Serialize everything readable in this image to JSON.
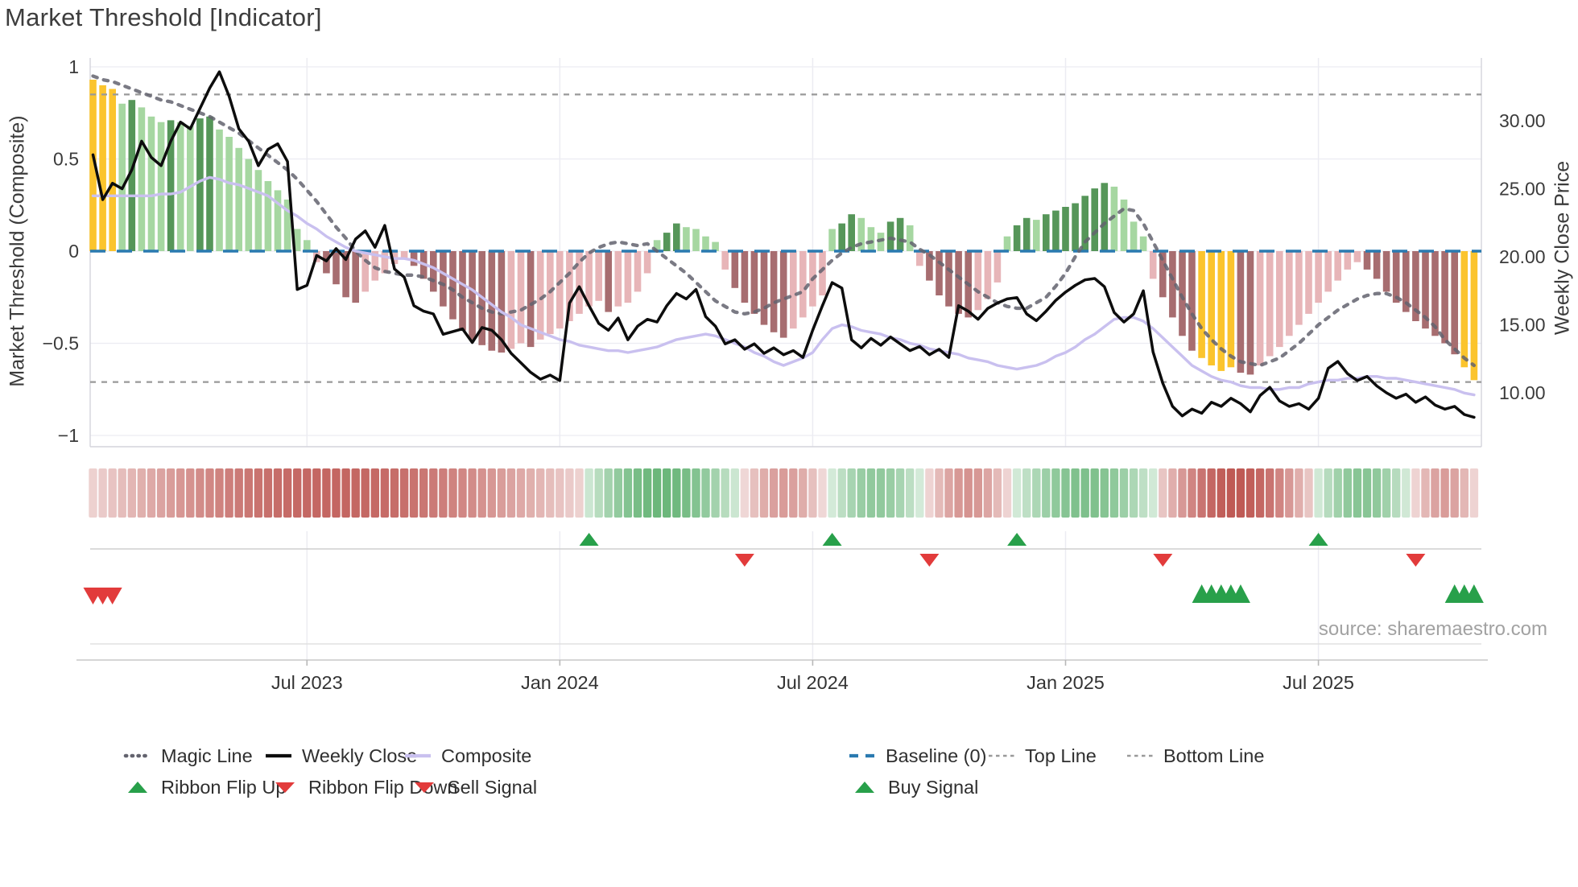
{
  "title": "Market Threshold [Indicator]",
  "source": "source: sharemaestro.com",
  "left_axis": {
    "title": "Market Threshold (Composite)",
    "ticks": [
      {
        "v": 1,
        "label": "1"
      },
      {
        "v": 0.5,
        "label": "0.5"
      },
      {
        "v": 0,
        "label": "0"
      },
      {
        "v": -0.5,
        "label": "−0.5"
      },
      {
        "v": -1,
        "label": "−1"
      }
    ]
  },
  "right_axis": {
    "title": "Weekly Close Price",
    "ticks": [
      {
        "p": 30,
        "label": "30.00"
      },
      {
        "p": 25,
        "label": "25.00"
      },
      {
        "p": 20,
        "label": "20.00"
      },
      {
        "p": 15,
        "label": "15.00"
      },
      {
        "p": 10,
        "label": "10.00"
      }
    ]
  },
  "x_axis": {
    "ticks": [
      {
        "week": 22,
        "label": "Jul 2023"
      },
      {
        "week": 48,
        "label": "Jan 2024"
      },
      {
        "week": 74,
        "label": "Jul 2024"
      },
      {
        "week": 100,
        "label": "Jan 2025"
      },
      {
        "week": 126,
        "label": "Jul 2025"
      }
    ]
  },
  "colors": {
    "bar_pos_light": "#a6d7a1",
    "bar_pos_dark": "#569659",
    "bar_neg_light": "#e7b5b8",
    "bar_neg_dark": "#a76d70",
    "bar_signal_yellow": "#fbc42d",
    "weekly_close": "#0d0d0d",
    "composite": "#c9c0ef",
    "magic_line": "#63636e",
    "baseline_blue": "#2a7ab0",
    "threshold_gray": "#999999",
    "flip_up_green": "#28a04a",
    "flip_down_red": "#e23b3b",
    "ribbon_red": "#b94b46",
    "ribbon_green": "#46a55a",
    "grid": "#ececf2",
    "spine": "#d4d4dc"
  },
  "chart_data": {
    "type": "combo: bar histogram + 3 lines (one on secondary axis) + heatmap ribbon + signal markers",
    "x_unit": "week",
    "num_weeks": 143,
    "x_range_shown": [
      "Feb 2023",
      "Oct 2025"
    ],
    "left_ylim": [
      -1.06,
      1.06
    ],
    "right_ylim": [
      6.0,
      34.6
    ],
    "baseline": 0,
    "top_line": 0.85,
    "bottom_line": -0.71,
    "series": [
      {
        "name": "Composite Histogram",
        "type": "bar",
        "axis": "left",
        "values": [
          0.93,
          0.9,
          0.88,
          0.8,
          0.82,
          0.78,
          0.73,
          0.7,
          0.71,
          0.7,
          0.68,
          0.72,
          0.73,
          0.66,
          0.62,
          0.56,
          0.5,
          0.44,
          0.38,
          0.33,
          0.28,
          0.12,
          0.06,
          -0.06,
          -0.12,
          -0.18,
          -0.25,
          -0.28,
          -0.22,
          -0.16,
          -0.12,
          -0.07,
          -0.04,
          -0.08,
          -0.15,
          -0.22,
          -0.3,
          -0.37,
          -0.43,
          -0.48,
          -0.51,
          -0.54,
          -0.55,
          -0.53,
          -0.5,
          -0.52,
          -0.48,
          -0.45,
          -0.42,
          -0.38,
          -0.34,
          -0.3,
          -0.27,
          -0.33,
          -0.3,
          -0.28,
          -0.22,
          -0.12,
          0.06,
          0.1,
          0.15,
          0.13,
          0.12,
          0.08,
          0.05,
          -0.1,
          -0.2,
          -0.28,
          -0.34,
          -0.4,
          -0.44,
          -0.47,
          -0.42,
          -0.36,
          -0.3,
          -0.24,
          0.12,
          0.15,
          0.2,
          0.18,
          0.13,
          0.1,
          0.16,
          0.18,
          0.14,
          -0.08,
          -0.16,
          -0.24,
          -0.3,
          -0.34,
          -0.36,
          -0.32,
          -0.26,
          -0.17,
          0.08,
          0.14,
          0.18,
          0.17,
          0.2,
          0.22,
          0.24,
          0.26,
          0.3,
          0.34,
          0.37,
          0.35,
          0.28,
          0.16,
          0.08,
          -0.15,
          -0.25,
          -0.36,
          -0.46,
          -0.54,
          -0.58,
          -0.62,
          -0.65,
          -0.63,
          -0.66,
          -0.67,
          -0.62,
          -0.57,
          -0.52,
          -0.46,
          -0.4,
          -0.34,
          -0.28,
          -0.22,
          -0.16,
          -0.1,
          -0.06,
          -0.1,
          -0.15,
          -0.22,
          -0.28,
          -0.33,
          -0.38,
          -0.42,
          -0.46,
          -0.5,
          -0.56,
          -0.63,
          -0.7
        ]
      },
      {
        "name": "Weekly Close",
        "type": "line",
        "axis": "right",
        "values": [
          27.5,
          24.2,
          25.4,
          25.0,
          26.4,
          28.5,
          27.3,
          26.7,
          28.5,
          29.9,
          29.4,
          30.9,
          32.4,
          33.6,
          31.8,
          29.4,
          28.5,
          26.7,
          27.9,
          28.3,
          27.0,
          17.6,
          17.9,
          20.1,
          19.7,
          20.6,
          19.8,
          21.3,
          21.9,
          20.7,
          22.3,
          19.1,
          18.5,
          16.4,
          16.0,
          15.8,
          14.3,
          14.5,
          14.7,
          13.7,
          14.8,
          14.6,
          13.9,
          12.9,
          12.2,
          11.5,
          11.0,
          11.3,
          10.9,
          16.6,
          17.8,
          16.4,
          15.1,
          14.6,
          15.5,
          13.9,
          14.9,
          15.4,
          15.2,
          16.4,
          17.3,
          16.9,
          17.6,
          15.6,
          14.9,
          13.6,
          13.9,
          13.2,
          13.6,
          12.9,
          13.3,
          12.8,
          13.1,
          12.6,
          14.6,
          16.4,
          18.1,
          17.7,
          13.9,
          13.3,
          14.0,
          13.5,
          14.1,
          13.6,
          13.1,
          13.4,
          12.8,
          13.2,
          12.6,
          16.4,
          16.0,
          15.4,
          16.2,
          16.6,
          16.9,
          17.0,
          15.8,
          15.3,
          16.0,
          16.8,
          17.4,
          17.9,
          18.3,
          18.4,
          17.8,
          15.9,
          15.2,
          15.8,
          17.5,
          13.0,
          10.7,
          9.0,
          8.3,
          8.8,
          8.5,
          9.3,
          9.0,
          9.6,
          9.2,
          8.6,
          9.8,
          10.4,
          9.4,
          9.0,
          9.2,
          8.8,
          9.6,
          11.8,
          12.3,
          11.4,
          10.9,
          11.2,
          10.5,
          10.0,
          9.6,
          9.9,
          9.3,
          9.7,
          9.1,
          8.8,
          9.0,
          8.4,
          8.2
        ]
      },
      {
        "name": "Composite",
        "type": "line",
        "axis": "left",
        "values": [
          0.3,
          0.3,
          0.3,
          0.3,
          0.3,
          0.3,
          0.3,
          0.31,
          0.31,
          0.32,
          0.35,
          0.38,
          0.4,
          0.39,
          0.37,
          0.36,
          0.34,
          0.32,
          0.3,
          0.26,
          0.22,
          0.19,
          0.15,
          0.12,
          0.08,
          0.05,
          0.02,
          0.0,
          -0.01,
          -0.02,
          -0.03,
          -0.04,
          -0.04,
          -0.05,
          -0.07,
          -0.09,
          -0.12,
          -0.15,
          -0.18,
          -0.21,
          -0.25,
          -0.29,
          -0.33,
          -0.36,
          -0.4,
          -0.42,
          -0.44,
          -0.46,
          -0.48,
          -0.49,
          -0.51,
          -0.52,
          -0.53,
          -0.54,
          -0.54,
          -0.55,
          -0.54,
          -0.53,
          -0.52,
          -0.5,
          -0.48,
          -0.47,
          -0.46,
          -0.45,
          -0.46,
          -0.48,
          -0.5,
          -0.52,
          -0.55,
          -0.57,
          -0.6,
          -0.62,
          -0.6,
          -0.58,
          -0.55,
          -0.48,
          -0.42,
          -0.4,
          -0.41,
          -0.43,
          -0.44,
          -0.45,
          -0.47,
          -0.48,
          -0.5,
          -0.51,
          -0.53,
          -0.54,
          -0.55,
          -0.56,
          -0.58,
          -0.59,
          -0.6,
          -0.62,
          -0.63,
          -0.64,
          -0.63,
          -0.62,
          -0.6,
          -0.57,
          -0.55,
          -0.52,
          -0.48,
          -0.45,
          -0.41,
          -0.37,
          -0.36,
          -0.36,
          -0.38,
          -0.42,
          -0.47,
          -0.52,
          -0.57,
          -0.62,
          -0.65,
          -0.68,
          -0.7,
          -0.71,
          -0.73,
          -0.74,
          -0.74,
          -0.75,
          -0.75,
          -0.74,
          -0.74,
          -0.72,
          -0.71,
          -0.7,
          -0.7,
          -0.69,
          -0.69,
          -0.68,
          -0.68,
          -0.69,
          -0.69,
          -0.7,
          -0.71,
          -0.72,
          -0.73,
          -0.74,
          -0.75,
          -0.77,
          -0.78
        ]
      },
      {
        "name": "Magic Line",
        "type": "line",
        "axis": "left",
        "style": "dotted",
        "values": [
          0.95,
          0.93,
          0.92,
          0.9,
          0.88,
          0.86,
          0.84,
          0.82,
          0.81,
          0.79,
          0.77,
          0.75,
          0.73,
          0.7,
          0.67,
          0.64,
          0.6,
          0.56,
          0.52,
          0.48,
          0.44,
          0.39,
          0.33,
          0.27,
          0.2,
          0.13,
          0.07,
          0.0,
          -0.05,
          -0.09,
          -0.11,
          -0.12,
          -0.13,
          -0.13,
          -0.14,
          -0.16,
          -0.18,
          -0.21,
          -0.25,
          -0.28,
          -0.31,
          -0.33,
          -0.34,
          -0.33,
          -0.32,
          -0.29,
          -0.26,
          -0.22,
          -0.17,
          -0.12,
          -0.06,
          -0.01,
          0.02,
          0.04,
          0.05,
          0.04,
          0.03,
          0.04,
          0.0,
          -0.04,
          -0.08,
          -0.12,
          -0.17,
          -0.22,
          -0.27,
          -0.3,
          -0.33,
          -0.34,
          -0.33,
          -0.31,
          -0.28,
          -0.26,
          -0.24,
          -0.22,
          -0.15,
          -0.1,
          -0.05,
          -0.01,
          0.02,
          0.04,
          0.05,
          0.06,
          0.07,
          0.06,
          0.05,
          0.01,
          -0.02,
          -0.06,
          -0.1,
          -0.14,
          -0.18,
          -0.22,
          -0.25,
          -0.28,
          -0.3,
          -0.31,
          -0.31,
          -0.28,
          -0.25,
          -0.19,
          -0.12,
          -0.03,
          0.05,
          0.1,
          0.15,
          0.19,
          0.23,
          0.22,
          0.15,
          0.05,
          -0.05,
          -0.15,
          -0.25,
          -0.34,
          -0.42,
          -0.48,
          -0.53,
          -0.57,
          -0.6,
          -0.61,
          -0.62,
          -0.6,
          -0.58,
          -0.54,
          -0.5,
          -0.45,
          -0.4,
          -0.36,
          -0.32,
          -0.29,
          -0.26,
          -0.24,
          -0.23,
          -0.23,
          -0.25,
          -0.28,
          -0.32,
          -0.36,
          -0.41,
          -0.48,
          -0.53,
          -0.58,
          -0.62
        ]
      }
    ],
    "signal_bar_weeks_yellow": [
      0,
      1,
      2,
      114,
      115,
      116,
      117,
      141,
      142
    ],
    "ribbon_segments": [
      {
        "start": 0,
        "end": 50,
        "color": "red",
        "peak": 0.85
      },
      {
        "start": 51,
        "end": 66,
        "color": "green",
        "peak": 0.8
      },
      {
        "start": 67,
        "end": 75,
        "color": "red",
        "peak": 0.55
      },
      {
        "start": 76,
        "end": 85,
        "color": "green",
        "peak": 0.6
      },
      {
        "start": 86,
        "end": 94,
        "color": "red",
        "peak": 0.6
      },
      {
        "start": 95,
        "end": 109,
        "color": "green",
        "peak": 0.7
      },
      {
        "start": 110,
        "end": 125,
        "color": "red",
        "peak": 0.92
      },
      {
        "start": 126,
        "end": 135,
        "color": "green",
        "peak": 0.65
      },
      {
        "start": 136,
        "end": 142,
        "color": "red",
        "peak": 0.55
      }
    ],
    "markers": {
      "ribbon_flip_up_weeks": [
        51,
        76,
        95,
        126
      ],
      "ribbon_flip_down_weeks": [
        67,
        86,
        110,
        136
      ],
      "sell_signal_weeks": [
        0,
        1,
        2
      ],
      "buy_signal_weeks": [
        114,
        115,
        116,
        117,
        118,
        140,
        141,
        142
      ]
    }
  },
  "legend": {
    "row1": [
      {
        "label": "Magic Line"
      },
      {
        "label": "Weekly Close"
      },
      {
        "label": "Composite"
      },
      {
        "label": "Baseline (0)"
      },
      {
        "label": "Top Line"
      },
      {
        "label": "Bottom Line"
      }
    ],
    "row2": [
      {
        "label": "Ribbon Flip Up"
      },
      {
        "label": "Ribbon Flip Down"
      },
      {
        "label": "Sell Signal"
      },
      {
        "label": "Buy Signal"
      }
    ]
  }
}
